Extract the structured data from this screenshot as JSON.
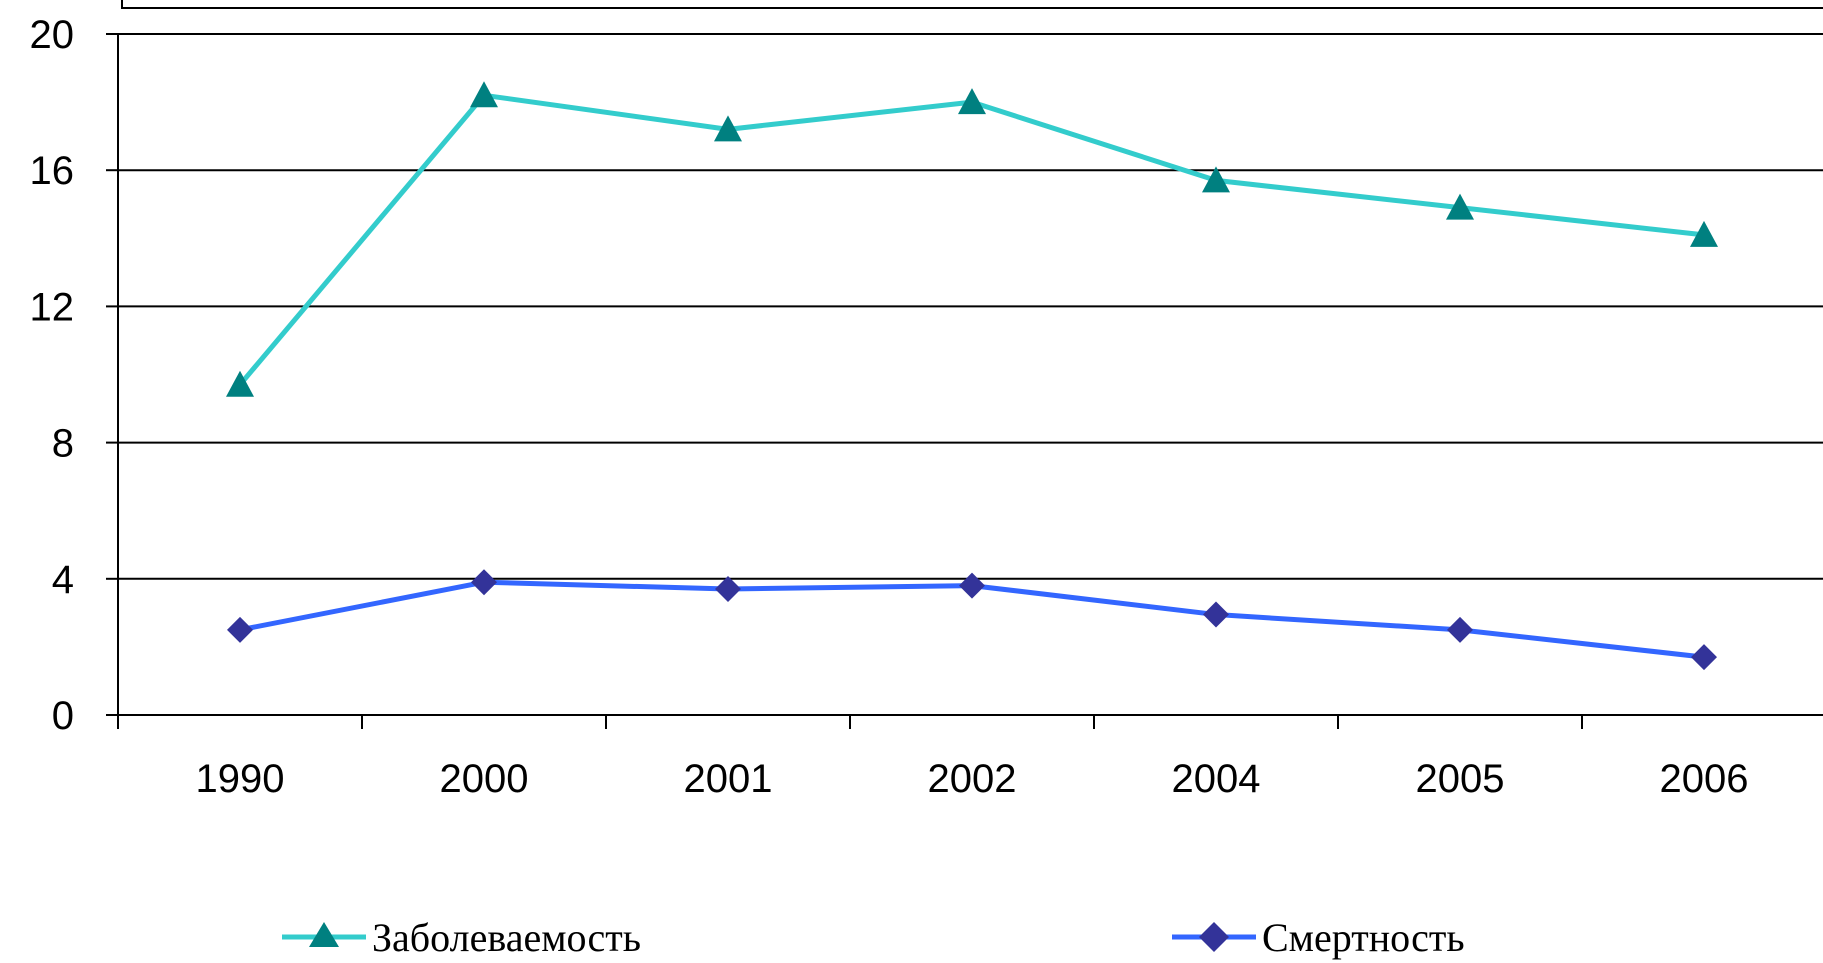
{
  "chart_data": {
    "type": "line",
    "title": "",
    "xlabel": "",
    "ylabel": "",
    "categories": [
      "1990",
      "2000",
      "2001",
      "2002",
      "2004",
      "2005",
      "2006"
    ],
    "ylim": [
      0,
      20
    ],
    "yticks": [
      "0",
      "4",
      "8",
      "12",
      "16",
      "20"
    ],
    "grid": "horizontal",
    "legend_position": "bottom",
    "series": [
      {
        "name": "Заболеваемость",
        "values": [
          9.7,
          18.2,
          17.2,
          18.0,
          15.7,
          14.9,
          14.1
        ],
        "color": "#33CCCC",
        "marker": "triangle",
        "marker_color": "#008080"
      },
      {
        "name": "Смертность",
        "values": [
          2.5,
          3.9,
          3.7,
          3.8,
          2.95,
          2.5,
          1.7
        ],
        "color": "#3366FF",
        "marker": "diamond",
        "marker_color": "#333399"
      }
    ]
  }
}
